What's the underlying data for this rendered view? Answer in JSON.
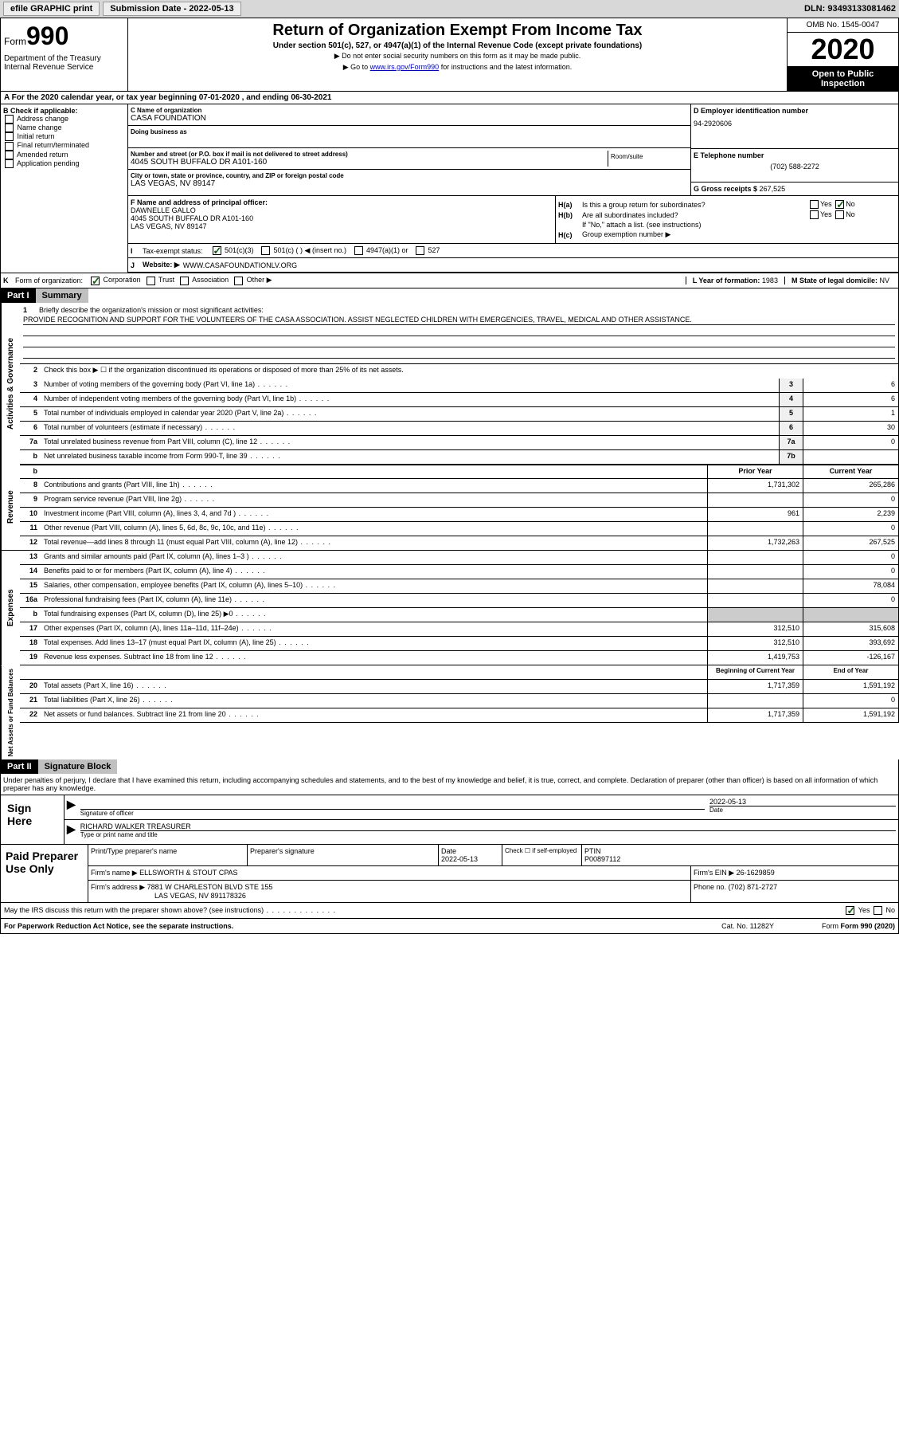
{
  "topbar": {
    "efile": "efile GRAPHIC print",
    "submission_label": "Submission Date - 2022-05-13",
    "dln": "DLN: 93493133081462"
  },
  "header": {
    "form_prefix": "Form",
    "form_num": "990",
    "dept": "Department of the Treasury\nInternal Revenue Service",
    "title": "Return of Organization Exempt From Income Tax",
    "subtitle": "Under section 501(c), 527, or 4947(a)(1) of the Internal Revenue Code (except private foundations)",
    "note1": "▶ Do not enter social security numbers on this form as it may be made public.",
    "note2_pre": "▶ Go to ",
    "note2_link": "www.irs.gov/Form990",
    "note2_post": " for instructions and the latest information.",
    "omb": "OMB No. 1545-0047",
    "year": "2020",
    "open": "Open to Public Inspection"
  },
  "row_a": "A For the 2020 calendar year, or tax year beginning 07-01-2020   , and ending 06-30-2021",
  "b_checks": {
    "title": "B Check if applicable:",
    "items": [
      "Address change",
      "Name change",
      "Initial return",
      "Final return/terminated",
      "Amended return",
      "Application pending"
    ]
  },
  "c": {
    "name_label": "C Name of organization",
    "name": "CASA FOUNDATION",
    "dba_label": "Doing business as",
    "dba": "",
    "addr_label": "Number and street (or P.O. box if mail is not delivered to street address)",
    "addr": "4045 SOUTH BUFFALO DR A101-160",
    "room_label": "Room/suite",
    "city_label": "City or town, state or province, country, and ZIP or foreign postal code",
    "city": "LAS VEGAS, NV  89147"
  },
  "d": {
    "label": "D Employer identification number",
    "val": "94-2920606"
  },
  "e": {
    "label": "E Telephone number",
    "val": "(702) 588-2272"
  },
  "g": {
    "label": "G Gross receipts $ ",
    "val": "267,525"
  },
  "f": {
    "label": "F Name and address of principal officer:",
    "name": "DAWNELLE GALLO",
    "addr1": "4045 SOUTH BUFFALO DR A101-160",
    "addr2": "LAS VEGAS, NV  89147"
  },
  "h": {
    "a_label": "H(a)",
    "a_text": "Is this a group return for subordinates?",
    "b_label": "H(b)",
    "b_text": "Are all subordinates included?",
    "b_note": "If \"No,\" attach a list. (see instructions)",
    "c_label": "H(c)",
    "c_text": "Group exemption number ▶"
  },
  "i": {
    "label": "I",
    "text": "Tax-exempt status:",
    "opts": [
      "501(c)(3)",
      "501(c) (  ) ◀ (insert no.)",
      "4947(a)(1) or",
      "527"
    ]
  },
  "j": {
    "label": "J",
    "text": "Website: ▶",
    "val": "WWW.CASAFOUNDATIONLV.ORG"
  },
  "k": {
    "label": "K",
    "text": "Form of organization:",
    "opts": [
      "Corporation",
      "Trust",
      "Association",
      "Other ▶"
    ]
  },
  "l": {
    "label": "L Year of formation: ",
    "val": "1983"
  },
  "m": {
    "label": "M State of legal domicile: ",
    "val": "NV"
  },
  "part1": {
    "label": "Part I",
    "title": "Summary"
  },
  "mission": {
    "num": "1",
    "label": "Briefly describe the organization's mission or most significant activities:",
    "text": "PROVIDE RECOGNITION AND SUPPORT FOR THE VOLUNTEERS OF THE CASA ASSOCIATION. ASSIST NEGLECTED CHILDREN WITH EMERGENCIES, TRAVEL, MEDICAL AND OTHER ASSISTANCE."
  },
  "line2": {
    "num": "2",
    "text": "Check this box ▶ ☐  if the organization discontinued its operations or disposed of more than 25% of its net assets."
  },
  "gov_lines": [
    {
      "num": "3",
      "desc": "Number of voting members of the governing body (Part VI, line 1a)",
      "ref": "3",
      "val": "6"
    },
    {
      "num": "4",
      "desc": "Number of independent voting members of the governing body (Part VI, line 1b)",
      "ref": "4",
      "val": "6"
    },
    {
      "num": "5",
      "desc": "Total number of individuals employed in calendar year 2020 (Part V, line 2a)",
      "ref": "5",
      "val": "1"
    },
    {
      "num": "6",
      "desc": "Total number of volunteers (estimate if necessary)",
      "ref": "6",
      "val": "30"
    },
    {
      "num": "7a",
      "desc": "Total unrelated business revenue from Part VIII, column (C), line 12",
      "ref": "7a",
      "val": "0"
    },
    {
      "num": "b",
      "desc": "Net unrelated business taxable income from Form 990-T, line 39",
      "ref": "7b",
      "val": ""
    }
  ],
  "col_headers": {
    "prior": "Prior Year",
    "current": "Current Year"
  },
  "revenue": [
    {
      "num": "8",
      "desc": "Contributions and grants (Part VIII, line 1h)",
      "prior": "1,731,302",
      "curr": "265,286"
    },
    {
      "num": "9",
      "desc": "Program service revenue (Part VIII, line 2g)",
      "prior": "",
      "curr": "0"
    },
    {
      "num": "10",
      "desc": "Investment income (Part VIII, column (A), lines 3, 4, and 7d )",
      "prior": "961",
      "curr": "2,239"
    },
    {
      "num": "11",
      "desc": "Other revenue (Part VIII, column (A), lines 5, 6d, 8c, 9c, 10c, and 11e)",
      "prior": "",
      "curr": "0"
    },
    {
      "num": "12",
      "desc": "Total revenue—add lines 8 through 11 (must equal Part VIII, column (A), line 12)",
      "prior": "1,732,263",
      "curr": "267,525"
    }
  ],
  "expenses": [
    {
      "num": "13",
      "desc": "Grants and similar amounts paid (Part IX, column (A), lines 1–3 )",
      "prior": "",
      "curr": "0"
    },
    {
      "num": "14",
      "desc": "Benefits paid to or for members (Part IX, column (A), line 4)",
      "prior": "",
      "curr": "0"
    },
    {
      "num": "15",
      "desc": "Salaries, other compensation, employee benefits (Part IX, column (A), lines 5–10)",
      "prior": "",
      "curr": "78,084"
    },
    {
      "num": "16a",
      "desc": "Professional fundraising fees (Part IX, column (A), line 11e)",
      "prior": "",
      "curr": "0"
    },
    {
      "num": "b",
      "desc": "Total fundraising expenses (Part IX, column (D), line 25) ▶0",
      "prior": "SHADED",
      "curr": "SHADED"
    },
    {
      "num": "17",
      "desc": "Other expenses (Part IX, column (A), lines 11a–11d, 11f–24e)",
      "prior": "312,510",
      "curr": "315,608"
    },
    {
      "num": "18",
      "desc": "Total expenses. Add lines 13–17 (must equal Part IX, column (A), line 25)",
      "prior": "312,510",
      "curr": "393,692"
    },
    {
      "num": "19",
      "desc": "Revenue less expenses. Subtract line 18 from line 12",
      "prior": "1,419,753",
      "curr": "-126,167"
    }
  ],
  "net_headers": {
    "begin": "Beginning of Current Year",
    "end": "End of Year"
  },
  "net": [
    {
      "num": "20",
      "desc": "Total assets (Part X, line 16)",
      "prior": "1,717,359",
      "curr": "1,591,192"
    },
    {
      "num": "21",
      "desc": "Total liabilities (Part X, line 26)",
      "prior": "",
      "curr": "0"
    },
    {
      "num": "22",
      "desc": "Net assets or fund balances. Subtract line 21 from line 20",
      "prior": "1,717,359",
      "curr": "1,591,192"
    }
  ],
  "part2": {
    "label": "Part II",
    "title": "Signature Block"
  },
  "disclaimer": "Under penalties of perjury, I declare that I have examined this return, including accompanying schedules and statements, and to the best of my knowledge and belief, it is true, correct, and complete. Declaration of preparer (other than officer) is based on all information of which preparer has any knowledge.",
  "sign": {
    "label": "Sign Here",
    "sig_label": "Signature of officer",
    "date": "2022-05-13",
    "date_label": "Date",
    "name": "RICHARD WALKER TREASURER",
    "name_label": "Type or print name and title"
  },
  "paid": {
    "label": "Paid Preparer Use Only",
    "headers": [
      "Print/Type preparer's name",
      "Preparer's signature",
      "Date",
      "",
      "PTIN"
    ],
    "row1": [
      "",
      "",
      "2022-05-13",
      "Check ☐ if self-employed",
      "P00897112"
    ],
    "firm_name_label": "Firm's name   ▶",
    "firm_name": "ELLSWORTH & STOUT CPAS",
    "firm_ein_label": "Firm's EIN ▶",
    "firm_ein": "26-1629859",
    "firm_addr_label": "Firm's address ▶",
    "firm_addr": "7881 W CHARLESTON BLVD STE 155",
    "firm_city": "LAS VEGAS, NV  891178326",
    "phone_label": "Phone no.",
    "phone": "(702) 871-2727"
  },
  "irs_discuss": "May the IRS discuss this return with the preparer shown above? (see instructions)",
  "footer": {
    "left": "For Paperwork Reduction Act Notice, see the separate instructions.",
    "mid": "Cat. No. 11282Y",
    "right": "Form 990 (2020)"
  },
  "side_labels": {
    "gov": "Activities & Governance",
    "rev": "Revenue",
    "exp": "Expenses",
    "net": "Net Assets or Fund Balances"
  }
}
